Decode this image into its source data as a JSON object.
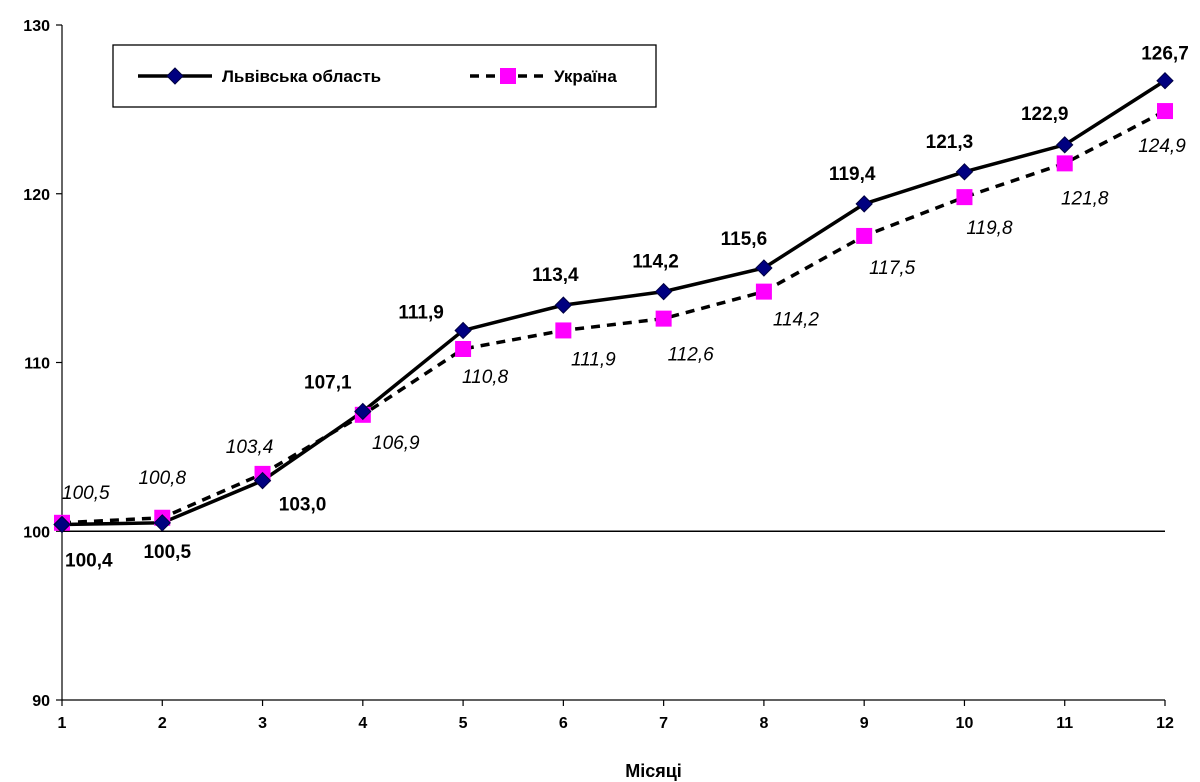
{
  "chart_data": {
    "type": "line",
    "title": "",
    "xlabel": "Місяці",
    "ylabel": "",
    "x": [
      1,
      2,
      3,
      4,
      5,
      6,
      7,
      8,
      9,
      10,
      11,
      12
    ],
    "ylim": [
      90,
      130
    ],
    "yticks": [
      90,
      100,
      110,
      120,
      130
    ],
    "reference_line": 100,
    "grid": false,
    "legend_position": "top-left",
    "series": [
      {
        "name": "Львівська область",
        "values": [
          100.4,
          100.5,
          103.0,
          107.1,
          111.9,
          113.4,
          114.2,
          115.6,
          119.4,
          121.3,
          122.9,
          126.7
        ],
        "labels": [
          "100,4",
          "100,5",
          "103,0",
          "107,1",
          "111,9",
          "113,4",
          "114,2",
          "115,6",
          "119,4",
          "121,3",
          "122,9",
          "126,7"
        ],
        "color": "#000000",
        "marker_color": "#000080",
        "line_style": "solid",
        "marker": "diamond"
      },
      {
        "name": "Україна",
        "values": [
          100.5,
          100.8,
          103.4,
          106.9,
          110.8,
          111.9,
          112.6,
          114.2,
          117.5,
          119.8,
          121.8,
          124.9
        ],
        "labels": [
          "100,5",
          "100,8",
          "103,4",
          "106,9",
          "110,8",
          "111,9",
          "112,6",
          "114,2",
          "117,5",
          "119,8",
          "121,8",
          "124,9"
        ],
        "color": "#000000",
        "marker_color": "#ff00ff",
        "line_style": "dashed",
        "marker": "square"
      }
    ]
  }
}
